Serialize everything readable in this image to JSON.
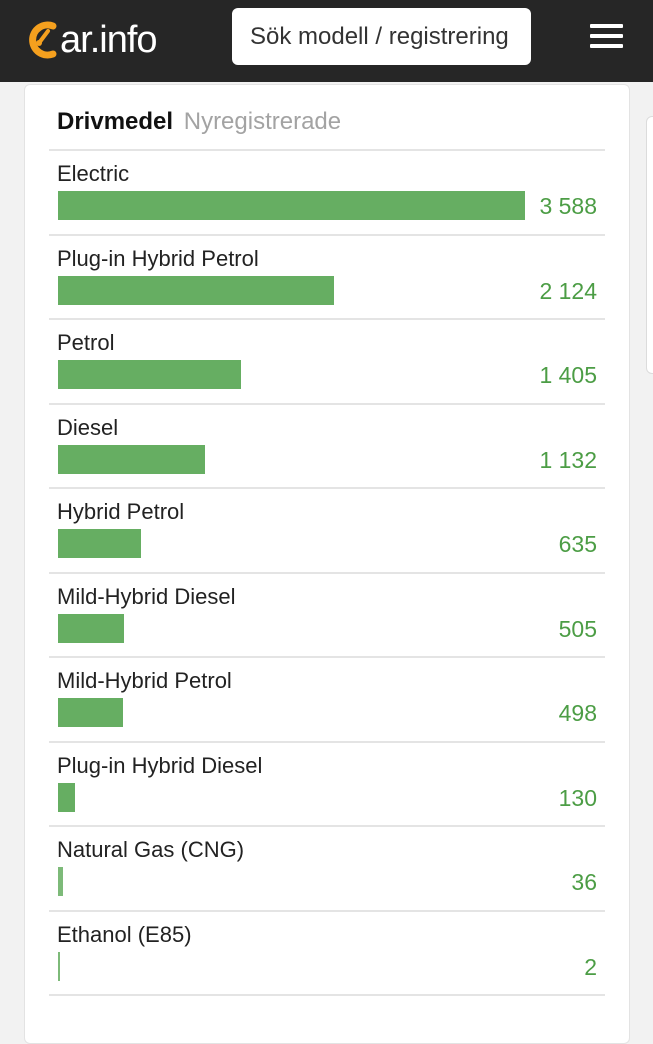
{
  "header": {
    "logo_text": "ar.info",
    "logo_mark": "C",
    "search_placeholder": "Sök modell / registrering",
    "menu_icon": "hamburger-menu-icon",
    "logo_accent_color": "#f5a01e"
  },
  "card": {
    "title": "Drivmedel",
    "subtitle": "Nyregistrerade",
    "bar_color": "#66ae62",
    "value_color": "#4c9d45"
  },
  "chart_data": {
    "type": "bar",
    "orientation": "horizontal",
    "title": "Drivmedel",
    "subtitle": "Nyregistrerade",
    "categories": [
      "Electric",
      "Plug-in Hybrid Petrol",
      "Petrol",
      "Diesel",
      "Hybrid Petrol",
      "Mild-Hybrid Diesel",
      "Mild-Hybrid Petrol",
      "Plug-in Hybrid Diesel",
      "Natural Gas (CNG)",
      "Ethanol (E85)"
    ],
    "values": [
      3588,
      2124,
      1405,
      1132,
      635,
      505,
      498,
      130,
      36,
      2
    ],
    "value_labels": [
      "3 588",
      "2 124",
      "1 405",
      "1 132",
      "635",
      "505",
      "498",
      "130",
      "36",
      "2"
    ],
    "xlim": [
      0,
      3588
    ],
    "grid": false,
    "legend": "none"
  }
}
